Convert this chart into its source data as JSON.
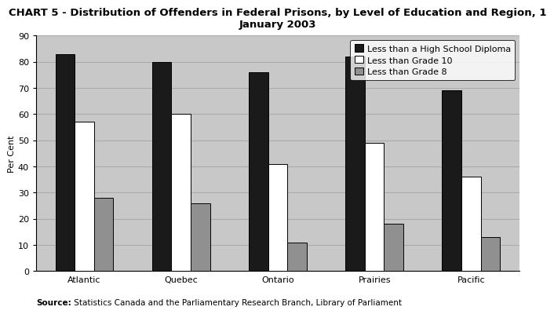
{
  "title": "CHART 5 - Distribution of Offenders in Federal Prisons, by Level of Education and Region, 1\nJanuary 2003",
  "categories": [
    "Atlantic",
    "Quebec",
    "Ontario",
    "Prairies",
    "Pacific"
  ],
  "series": [
    {
      "label": "Less than a High School Diploma",
      "color": "#1a1a1a",
      "values": [
        83,
        80,
        76,
        82,
        69
      ]
    },
    {
      "label": "Less than Grade 10",
      "color": "#ffffff",
      "values": [
        57,
        60,
        41,
        49,
        36
      ]
    },
    {
      "label": "Less than Grade 8",
      "color": "#909090",
      "values": [
        28,
        26,
        11,
        18,
        13
      ]
    }
  ],
  "ylabel": "Per Cent",
  "ylim": [
    0,
    90
  ],
  "yticks": [
    0,
    10,
    20,
    30,
    40,
    50,
    60,
    70,
    80,
    90
  ],
  "fig_background_color": "#ffffff",
  "plot_bg_color": "#c8c8c8",
  "bar_edge_color": "#000000",
  "bar_width": 0.2,
  "source_bold": "Source:",
  "source_rest": " Statistics Canada and the Parliamentary Research Branch, Library of Parliament",
  "legend_loc": "upper right",
  "title_fontsize": 9.5,
  "axis_label_fontsize": 8,
  "tick_fontsize": 8,
  "grid_color": "#aaaaaa",
  "legend_fontsize": 8
}
